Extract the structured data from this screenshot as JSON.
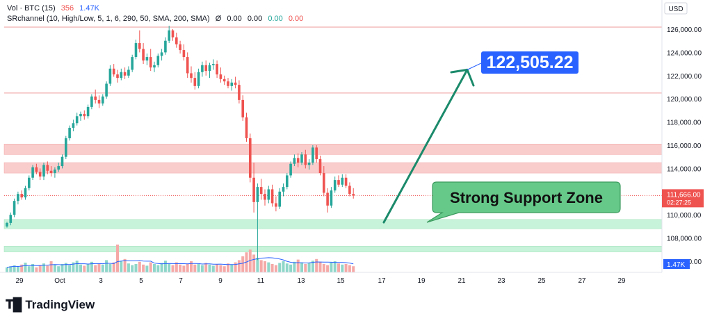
{
  "legend": {
    "vol_label": "Vol · BTC (15)",
    "vol_value_a": "356",
    "vol_value_b": "1.47K",
    "indicator_label": "SRchannel (10, High/Low, 5, 1, 6, 290, 50, SMA, 200, SMA)",
    "indicator_symbol": "Ø",
    "indicator_values": [
      "0.00",
      "0.00",
      "0.00",
      "0.00"
    ]
  },
  "price_axis": {
    "currency": "USD",
    "ticks": [
      "126,000.00",
      "124,000.00",
      "122,000.00",
      "120,000.00",
      "118,000.00",
      "116,000.00",
      "114,000.00",
      "112,000.00",
      "110,000.00",
      "108,000.00",
      "106,000.00"
    ],
    "current_price": "111,666.00",
    "countdown": "02:27:25",
    "volume_badge": "1.47K"
  },
  "time_axis": {
    "ticks": [
      "29",
      "Oct",
      "3",
      "5",
      "7",
      "9",
      "11",
      "13",
      "15",
      "17",
      "19",
      "21",
      "23",
      "25",
      "27",
      "29"
    ]
  },
  "annotations": {
    "target_label": "122,505.22",
    "support_label": "Strong Support Zone"
  },
  "branding": {
    "logo_text": "TradingView"
  },
  "colors": {
    "up": "#26a69a",
    "down": "#ef5350",
    "resistance_zone": "#f9c8c8",
    "support_zone": "#c4f2d8",
    "target_badge": "#2962ff",
    "support_badge": "#66c98a",
    "arrow": "#1b8a6b"
  },
  "chart_data": {
    "type": "candlestick",
    "ylim": [
      105000,
      127000
    ],
    "zones": {
      "resistance": [
        [
          113600,
          114500
        ],
        [
          115200,
          116100
        ]
      ],
      "support": [
        [
          108800,
          109600
        ],
        [
          106800,
          107300
        ]
      ]
    },
    "target_price": 122505.22,
    "candles": [
      [
        109000,
        109400,
        108900,
        109300
      ],
      [
        109300,
        110200,
        109100,
        110000
      ],
      [
        110000,
        111400,
        109800,
        111200
      ],
      [
        111200,
        112000,
        110900,
        111800
      ],
      [
        111800,
        112100,
        111300,
        111500
      ],
      [
        111500,
        112500,
        111300,
        112300
      ],
      [
        112300,
        113400,
        112100,
        113200
      ],
      [
        113200,
        114300,
        113000,
        114100
      ],
      [
        114100,
        114400,
        113500,
        113700
      ],
      [
        113700,
        114000,
        113000,
        113300
      ],
      [
        113300,
        114500,
        113000,
        114300
      ],
      [
        114300,
        114600,
        113500,
        113800
      ],
      [
        113800,
        114200,
        113300,
        113600
      ],
      [
        113600,
        114100,
        113200,
        113900
      ],
      [
        113900,
        114500,
        113700,
        114200
      ],
      [
        114200,
        115200,
        114000,
        115000
      ],
      [
        115000,
        116800,
        114800,
        116600
      ],
      [
        116600,
        117700,
        116400,
        117500
      ],
      [
        117500,
        118200,
        117200,
        117900
      ],
      [
        117900,
        118800,
        117700,
        118500
      ],
      [
        118500,
        118900,
        118100,
        118700
      ],
      [
        118700,
        119000,
        118200,
        118500
      ],
      [
        118500,
        119500,
        118300,
        119300
      ],
      [
        119300,
        120400,
        119100,
        120200
      ],
      [
        120200,
        120800,
        119600,
        119900
      ],
      [
        119900,
        120300,
        119200,
        119600
      ],
      [
        119600,
        120400,
        119400,
        120200
      ],
      [
        120200,
        121500,
        120000,
        121300
      ],
      [
        121300,
        122900,
        121100,
        122600
      ],
      [
        122600,
        123000,
        121900,
        122100
      ],
      [
        122100,
        122500,
        121400,
        121800
      ],
      [
        121800,
        122600,
        121600,
        122300
      ],
      [
        122300,
        122700,
        121700,
        122000
      ],
      [
        122000,
        122800,
        121800,
        122500
      ],
      [
        122500,
        123800,
        122300,
        123600
      ],
      [
        123600,
        125100,
        123400,
        124800
      ],
      [
        124800,
        125900,
        124000,
        124300
      ],
      [
        124300,
        124800,
        123000,
        123300
      ],
      [
        123300,
        123900,
        122900,
        123600
      ],
      [
        123600,
        124300,
        122400,
        122700
      ],
      [
        122700,
        123200,
        122300,
        122900
      ],
      [
        122900,
        123900,
        122700,
        123700
      ],
      [
        123700,
        124300,
        123300,
        124000
      ],
      [
        124000,
        125300,
        123800,
        125000
      ],
      [
        125000,
        126300,
        124800,
        125900
      ],
      [
        125900,
        126000,
        125000,
        125300
      ],
      [
        125300,
        125700,
        124400,
        124700
      ],
      [
        124700,
        125000,
        123900,
        124200
      ],
      [
        124200,
        124700,
        123300,
        123600
      ],
      [
        123600,
        124000,
        121800,
        122200
      ],
      [
        122200,
        122800,
        121400,
        121800
      ],
      [
        121800,
        122300,
        120800,
        121100
      ],
      [
        121100,
        122600,
        120900,
        122300
      ],
      [
        122300,
        123200,
        121900,
        122900
      ],
      [
        122900,
        123300,
        122000,
        122400
      ],
      [
        122400,
        123100,
        121800,
        122900
      ],
      [
        122900,
        123400,
        122500,
        123000
      ],
      [
        123000,
        123300,
        121800,
        122100
      ],
      [
        122100,
        122700,
        121400,
        121700
      ],
      [
        121700,
        122000,
        121200,
        121500
      ],
      [
        121500,
        121800,
        120900,
        121100
      ],
      [
        121100,
        121700,
        120700,
        121400
      ],
      [
        121400,
        121900,
        120900,
        121200
      ],
      [
        121200,
        121600,
        119600,
        119900
      ],
      [
        119900,
        120300,
        118100,
        118400
      ],
      [
        118400,
        118800,
        116300,
        116600
      ],
      [
        116600,
        117000,
        112800,
        113200
      ],
      [
        113200,
        114500,
        110200,
        111100
      ],
      [
        111100,
        112700,
        106100,
        112400
      ],
      [
        112400,
        113100,
        111300,
        111800
      ],
      [
        111800,
        112200,
        110800,
        111300
      ],
      [
        111300,
        112500,
        111000,
        112200
      ],
      [
        112200,
        112600,
        110700,
        111000
      ],
      [
        111000,
        111600,
        110300,
        110700
      ],
      [
        110700,
        112300,
        110500,
        112000
      ],
      [
        112000,
        112700,
        111600,
        112400
      ],
      [
        112400,
        113600,
        112200,
        113400
      ],
      [
        113400,
        114600,
        113200,
        114400
      ],
      [
        114400,
        115200,
        114200,
        114900
      ],
      [
        114900,
        115300,
        114100,
        114500
      ],
      [
        114500,
        115400,
        114300,
        115200
      ],
      [
        115200,
        115600,
        114000,
        114300
      ],
      [
        114300,
        114800,
        113900,
        114500
      ],
      [
        114500,
        116000,
        114300,
        115800
      ],
      [
        115800,
        116000,
        114500,
        114800
      ],
      [
        114800,
        115100,
        113400,
        113600
      ],
      [
        113600,
        114200,
        111600,
        111900
      ],
      [
        111900,
        112300,
        110200,
        110800
      ],
      [
        110800,
        112400,
        110600,
        112100
      ],
      [
        112100,
        113300,
        111900,
        113000
      ],
      [
        113000,
        113400,
        112400,
        112600
      ],
      [
        112600,
        113500,
        112400,
        113200
      ],
      [
        113200,
        113500,
        112300,
        112500
      ],
      [
        112500,
        112800,
        111600,
        111800
      ],
      [
        111800,
        112300,
        111400,
        111666
      ]
    ],
    "volume": [
      0.18,
      0.22,
      0.25,
      0.2,
      0.28,
      0.35,
      0.22,
      0.3,
      0.18,
      0.26,
      0.32,
      0.24,
      0.4,
      0.28,
      0.22,
      0.3,
      0.34,
      0.26,
      0.36,
      0.42,
      0.28,
      0.24,
      0.3,
      0.38,
      0.26,
      0.32,
      0.28,
      0.44,
      0.3,
      0.36,
      1.0,
      0.4,
      0.48,
      0.32,
      0.26,
      0.3,
      0.38,
      0.28,
      0.24,
      0.36,
      0.3,
      0.26,
      0.34,
      0.42,
      0.3,
      0.26,
      0.36,
      0.28,
      0.24,
      0.32,
      0.4,
      0.28,
      0.3,
      0.26,
      0.34,
      0.28,
      0.24,
      0.3,
      0.26,
      0.22,
      0.32,
      0.28,
      0.36,
      0.44,
      0.58,
      0.72,
      0.82,
      0.64,
      0.52,
      0.44,
      0.4,
      0.36,
      0.3,
      0.26,
      0.34,
      0.4,
      0.32,
      0.28,
      0.38,
      0.46,
      0.36,
      0.3,
      0.34,
      0.42,
      0.48,
      0.38,
      0.3,
      0.26,
      0.36,
      0.4,
      0.32,
      0.28,
      0.3,
      0.26,
      0.22
    ]
  }
}
